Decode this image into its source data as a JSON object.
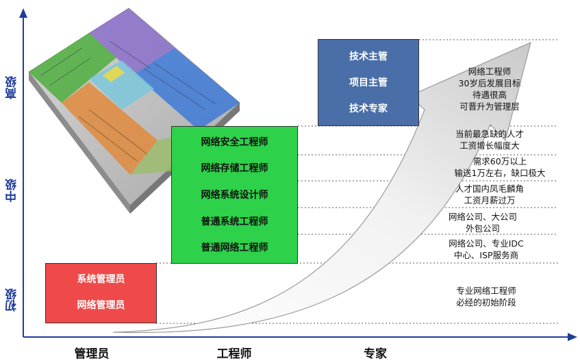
{
  "axes": {
    "y_levels": [
      "初级",
      "中级",
      "高级"
    ],
    "x_categories": [
      "管理员",
      "工程师",
      "专家"
    ]
  },
  "boxes": {
    "admin": {
      "items": [
        "系统管理员",
        "网络管理员"
      ],
      "fill": "#ef4a4a"
    },
    "engineer": {
      "items": [
        "网络安全工程师",
        "网络存储工程师",
        "网络系统设计师",
        "普通系统工程师",
        "普通网络工程师"
      ],
      "fill": "#2ed14a"
    },
    "expert": {
      "items": [
        "技术主管",
        "项目主管",
        "技术专家"
      ],
      "fill": "#4a6fa8"
    }
  },
  "notes": [
    [
      "网络工程师",
      "30岁后发展目标",
      "待遇很高",
      "可晋升为管理层"
    ],
    [
      "当前最急缺的人才",
      "工资增长幅度大"
    ],
    [
      "需求60万以上",
      "输送1万左右，缺口极大"
    ],
    [
      "人才国内凤毛麟角",
      "工资月薪过万"
    ],
    [
      "网络公司、大公司",
      "外包公司"
    ],
    [
      "网络公司、专业IDC",
      "中心、ISP服务商"
    ],
    [
      "专业网络工程师",
      "必经的初始阶段"
    ]
  ],
  "colors": {
    "axis": "#1f3d99",
    "arrow_grey": "#c8c8c8"
  },
  "illustration": "office-floor-plan-image"
}
